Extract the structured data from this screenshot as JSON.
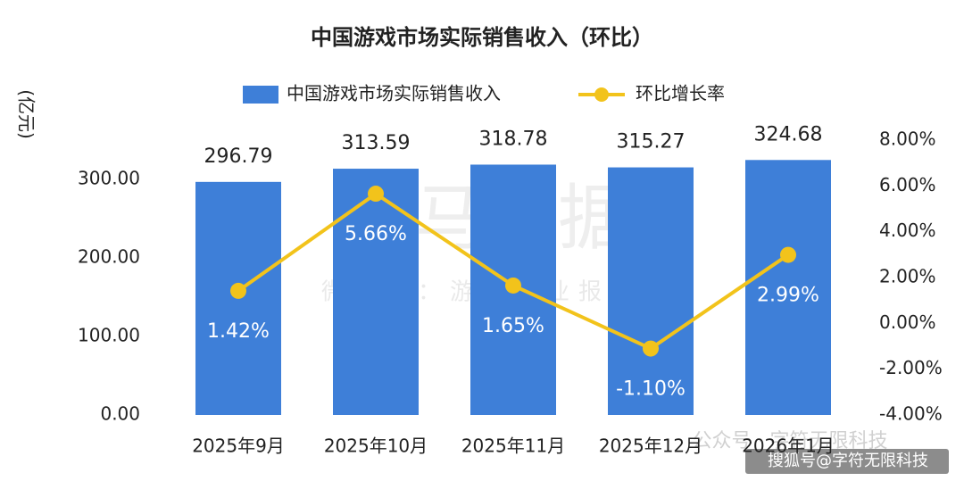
{
  "chart_data": {
    "type": "bar-line",
    "title": "中国游戏市场实际销售收入（环比）",
    "y_label": "(亿元)",
    "categories": [
      "2025年9月",
      "2025年10月",
      "2025年11月",
      "2025年12月",
      "2026年1月"
    ],
    "series": [
      {
        "name": "中国游戏市场实际销售收入",
        "type": "bar",
        "color": "#3e7fd8",
        "axis": "y",
        "values": [
          296.79,
          313.59,
          318.78,
          315.27,
          324.68
        ]
      },
      {
        "name": "环比增长率",
        "type": "line",
        "color": "#f2c31b",
        "axis": "y2",
        "values": [
          1.42,
          5.66,
          1.65,
          -1.1,
          2.99
        ],
        "value_labels": [
          "1.42%",
          "5.66%",
          "1.65%",
          "-1.10%",
          "2.99%"
        ]
      }
    ],
    "ylim": [
      0,
      350
    ],
    "yticks": [
      {
        "value": 0,
        "label": "0.00"
      },
      {
        "value": 100,
        "label": "100.00"
      },
      {
        "value": 200,
        "label": "200.00"
      },
      {
        "value": 300,
        "label": "300.00"
      }
    ],
    "y2lim": [
      -4,
      8
    ],
    "y2ticks": [
      {
        "value": -4,
        "label": "-4.00%"
      },
      {
        "value": -2,
        "label": "-2.00%"
      },
      {
        "value": 0,
        "label": "0.00%"
      },
      {
        "value": 2,
        "label": "2.00%"
      },
      {
        "value": 4,
        "label": "4.00%"
      },
      {
        "value": 6,
        "label": "6.00%"
      },
      {
        "value": 8,
        "label": "8.00%"
      }
    ],
    "grid": false,
    "legend_position": "top",
    "watermarks": [
      "伽马数据",
      "微信号：游戏产业报告",
      "公众号 · 字符无限科技",
      "搜狐号@字符无限科技"
    ]
  }
}
